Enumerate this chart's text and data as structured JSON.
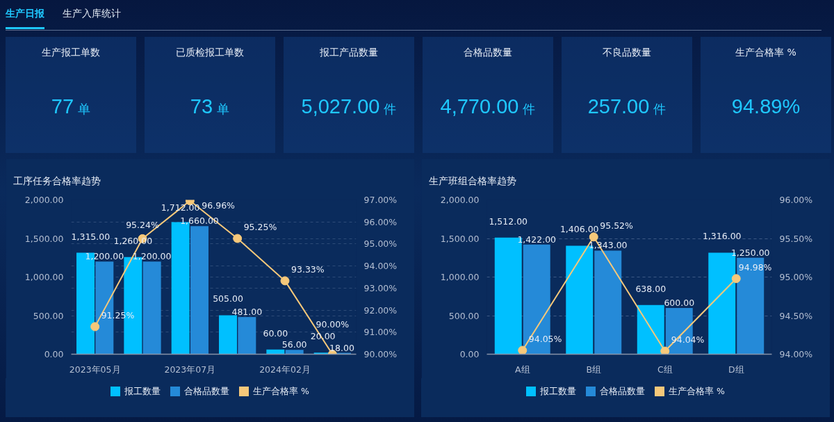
{
  "chart_data": [
    {
      "type": "other",
      "annotations": [
        "生产日报",
        "生产入库统计"
      ]
    },
    {
      "type": "other",
      "title": "生产报工单数",
      "annotations": [
        "77",
        "单"
      ]
    },
    {
      "type": "other",
      "title": "已质检报工单数",
      "annotations": [
        "73",
        "单"
      ]
    },
    {
      "type": "other",
      "title": "报工产品数量",
      "annotations": [
        "5,027.00",
        "件"
      ]
    },
    {
      "type": "other",
      "title": "合格品数量",
      "annotations": [
        "4,770.00",
        "件"
      ]
    },
    {
      "type": "other",
      "title": "不良品数量",
      "annotations": [
        "257.00",
        "件"
      ]
    },
    {
      "type": "other",
      "title": "生产合格率 %",
      "annotations": [
        "94.89%"
      ]
    },
    {
      "type": "bar",
      "title": "工序任务合格率趋势",
      "categories": [
        "2023年05月",
        null,
        "2023年07月",
        null,
        "2024年02月",
        null
      ],
      "series": [
        {
          "name": "报工数量",
          "type": "bar",
          "color": "#00c0ff",
          "values": [
            1315,
            1260,
            1712,
            505,
            60,
            20
          ],
          "value_labels": [
            "1,315.00",
            "1,260.00",
            "1,712.00",
            "505.00",
            "60.00",
            "20.00"
          ]
        },
        {
          "name": "合格品数量",
          "type": "bar",
          "color": "#258ad8",
          "values": [
            1200,
            1200,
            1660,
            481,
            56,
            18
          ],
          "value_labels": [
            "1,200.00",
            "1,200.00",
            "1,660.00",
            "481.00",
            "56.00",
            "18.00"
          ]
        },
        {
          "name": "生产合格率 %",
          "type": "line",
          "axis": "y2",
          "color": "#f6c87a",
          "values": [
            91.25,
            95.24,
            96.96,
            95.25,
            93.33,
            90.0
          ],
          "value_labels": [
            "91.25%",
            "95.24%",
            "96.96%",
            "95.25%",
            "93.33%",
            "90.00%"
          ]
        }
      ],
      "ylim": [
        0,
        2000
      ],
      "yticks": [
        {
          "value": 0,
          "label": "0.00"
        },
        {
          "value": 500,
          "label": "500.00"
        },
        {
          "value": 1000,
          "label": "1,000.00"
        },
        {
          "value": 1500,
          "label": "1,500.00"
        },
        {
          "value": 2000,
          "label": "2,000.00"
        }
      ],
      "y2lim": [
        90,
        97
      ],
      "y2ticks": [
        {
          "value": 90,
          "label": "90.00%"
        },
        {
          "value": 91,
          "label": "91.00%"
        },
        {
          "value": 92,
          "label": "92.00%"
        },
        {
          "value": 93,
          "label": "93.00%"
        },
        {
          "value": 94,
          "label": "94.00%"
        },
        {
          "value": 95,
          "label": "95.00%"
        },
        {
          "value": 96,
          "label": "96.00%"
        },
        {
          "value": 97,
          "label": "97.00%"
        }
      ],
      "grid": "y",
      "legend": "bottom",
      "marker": "circle",
      "line_style": "solid"
    },
    {
      "type": "bar",
      "title": "生产班组合格率趋势",
      "categories": [
        "A组",
        "B组",
        "C组",
        "D组"
      ],
      "series": [
        {
          "name": "报工数量",
          "type": "bar",
          "color": "#00c0ff",
          "values": [
            1512,
            1406,
            638,
            1316
          ],
          "value_labels": [
            "1,512.00",
            "1,406.00",
            "638.00",
            "1,316.00"
          ]
        },
        {
          "name": "合格品数量",
          "type": "bar",
          "color": "#258ad8",
          "values": [
            1422,
            1343,
            600,
            1250
          ],
          "value_labels": [
            "1,422.00",
            "1,343.00",
            "600.00",
            "1,250.00"
          ]
        },
        {
          "name": "生产合格率 %",
          "type": "line",
          "axis": "y2",
          "color": "#f6c87a",
          "values": [
            94.05,
            95.52,
            94.04,
            94.98
          ],
          "value_labels": [
            "94.05%",
            "95.52%",
            "94.04%",
            "94.98%"
          ]
        }
      ],
      "ylim": [
        0,
        2000
      ],
      "yticks": [
        {
          "value": 0,
          "label": "0.00"
        },
        {
          "value": 500,
          "label": "500.00"
        },
        {
          "value": 1000,
          "label": "1,000.00"
        },
        {
          "value": 1500,
          "label": "1,500.00"
        },
        {
          "value": 2000,
          "label": "2,000.00"
        }
      ],
      "y2lim": [
        94,
        96
      ],
      "y2ticks": [
        {
          "value": 94,
          "label": "94.00%"
        },
        {
          "value": 94.5,
          "label": "94.50%"
        },
        {
          "value": 95,
          "label": "95.00%"
        },
        {
          "value": 95.5,
          "label": "95.50%"
        },
        {
          "value": 96,
          "label": "96.00%"
        }
      ],
      "grid": "y",
      "legend": "bottom",
      "marker": "circle",
      "line_style": "solid"
    }
  ]
}
